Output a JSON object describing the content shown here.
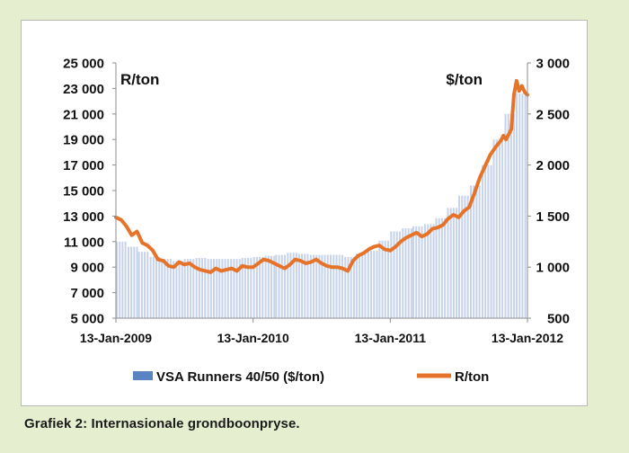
{
  "caption": "Grafiek 2: Internasionale grondboonpryse.",
  "chart_data": {
    "type": "bar+line",
    "left_unit_label": "R/ton",
    "right_unit_label": "$/ton",
    "left_axis": {
      "min": 5000,
      "max": 25000,
      "step": 2000,
      "ticks": [
        "5 000",
        "7 000",
        "9 000",
        "11 000",
        "13 000",
        "15 000",
        "17 000",
        "19 000",
        "21 000",
        "23 000",
        "25 000"
      ]
    },
    "right_axis": {
      "min": 500,
      "max": 3000,
      "step": 500,
      "ticks": [
        "500",
        "1 000",
        "1 500",
        "2 000",
        "2 500",
        "3 000"
      ]
    },
    "x_ticks": [
      "13-Jan-2009",
      "13-Jan-2010",
      "13-Jan-2011",
      "13-Jan-2012"
    ],
    "x_range": [
      "2009-01-13",
      "2012-01-13"
    ],
    "legend": [
      "VSA Runners 40/50 ($/ton)",
      "R/ton"
    ],
    "legend_position": "bottom",
    "grid": false,
    "colors": {
      "bars": "#c7d3ea",
      "legend_bar": "#5b84c4",
      "line": "#e5742a"
    },
    "series": [
      {
        "name": "VSA Runners 40/50 ($/ton)",
        "axis": "right",
        "kind": "bar",
        "dates": [
          "2009-01-13",
          "2009-02-13",
          "2009-03-13",
          "2009-04-13",
          "2009-05-13",
          "2009-06-13",
          "2009-07-13",
          "2009-08-13",
          "2009-09-13",
          "2009-10-13",
          "2009-11-13",
          "2009-12-13",
          "2010-01-13",
          "2010-02-13",
          "2010-03-13",
          "2010-04-13",
          "2010-05-13",
          "2010-06-13",
          "2010-07-13",
          "2010-08-13",
          "2010-09-13",
          "2010-10-13",
          "2010-11-13",
          "2010-12-13",
          "2011-01-13",
          "2011-02-13",
          "2011-03-13",
          "2011-04-13",
          "2011-05-13",
          "2011-06-13",
          "2011-07-13",
          "2011-08-13",
          "2011-09-13",
          "2011-10-13",
          "2011-11-13",
          "2011-12-13",
          "2012-01-13"
        ],
        "values": [
          1250,
          1200,
          1150,
          1100,
          1080,
          1060,
          1080,
          1090,
          1080,
          1080,
          1080,
          1090,
          1100,
          1110,
          1120,
          1140,
          1130,
          1120,
          1120,
          1120,
          1100,
          1130,
          1160,
          1260,
          1350,
          1380,
          1400,
          1420,
          1480,
          1580,
          1700,
          1800,
          2000,
          2250,
          2500,
          2700,
          2720
        ]
      },
      {
        "name": "R/ton",
        "axis": "left",
        "kind": "line",
        "dates": [
          "2009-01-13",
          "2009-01-27",
          "2009-02-10",
          "2009-02-24",
          "2009-03-10",
          "2009-03-24",
          "2009-04-07",
          "2009-04-21",
          "2009-05-05",
          "2009-05-19",
          "2009-06-02",
          "2009-06-16",
          "2009-06-30",
          "2009-07-14",
          "2009-07-28",
          "2009-08-11",
          "2009-08-25",
          "2009-09-08",
          "2009-09-22",
          "2009-10-06",
          "2009-10-20",
          "2009-11-03",
          "2009-11-17",
          "2009-12-01",
          "2009-12-15",
          "2009-12-29",
          "2010-01-13",
          "2010-01-27",
          "2010-02-10",
          "2010-02-24",
          "2010-03-10",
          "2010-03-24",
          "2010-04-07",
          "2010-04-21",
          "2010-05-05",
          "2010-05-19",
          "2010-06-02",
          "2010-06-16",
          "2010-06-30",
          "2010-07-14",
          "2010-07-28",
          "2010-08-11",
          "2010-08-25",
          "2010-09-08",
          "2010-09-22",
          "2010-10-06",
          "2010-10-20",
          "2010-11-03",
          "2010-11-17",
          "2010-12-01",
          "2010-12-15",
          "2010-12-29",
          "2011-01-13",
          "2011-01-27",
          "2011-02-10",
          "2011-02-24",
          "2011-03-10",
          "2011-03-24",
          "2011-04-07",
          "2011-04-21",
          "2011-05-05",
          "2011-05-19",
          "2011-06-02",
          "2011-06-16",
          "2011-06-30",
          "2011-07-14",
          "2011-07-28",
          "2011-08-11",
          "2011-08-25",
          "2011-09-08",
          "2011-09-22",
          "2011-10-06",
          "2011-10-20",
          "2011-11-03",
          "2011-11-10",
          "2011-11-17",
          "2011-11-24",
          "2011-12-01",
          "2011-12-08",
          "2011-12-15",
          "2011-12-22",
          "2011-12-29",
          "2012-01-06",
          "2012-01-13"
        ],
        "values": [
          12900,
          12700,
          12200,
          11500,
          11800,
          10900,
          10700,
          10300,
          9600,
          9500,
          9100,
          9000,
          9400,
          9200,
          9300,
          9000,
          8800,
          8700,
          8600,
          8900,
          8700,
          8800,
          8900,
          8700,
          9100,
          9000,
          9000,
          9300,
          9600,
          9500,
          9300,
          9100,
          8900,
          9200,
          9600,
          9500,
          9300,
          9400,
          9600,
          9300,
          9100,
          9000,
          9000,
          8900,
          8700,
          9500,
          9900,
          10100,
          10400,
          10600,
          10700,
          10400,
          10300,
          10600,
          11000,
          11300,
          11500,
          11700,
          11400,
          11600,
          12000,
          12100,
          12300,
          12800,
          13100,
          12900,
          13400,
          13700,
          14800,
          16000,
          16900,
          17800,
          18400,
          18900,
          19300,
          19000,
          19400,
          19800,
          22500,
          23600,
          22800,
          23200,
          22700,
          22500
        ]
      }
    ]
  }
}
